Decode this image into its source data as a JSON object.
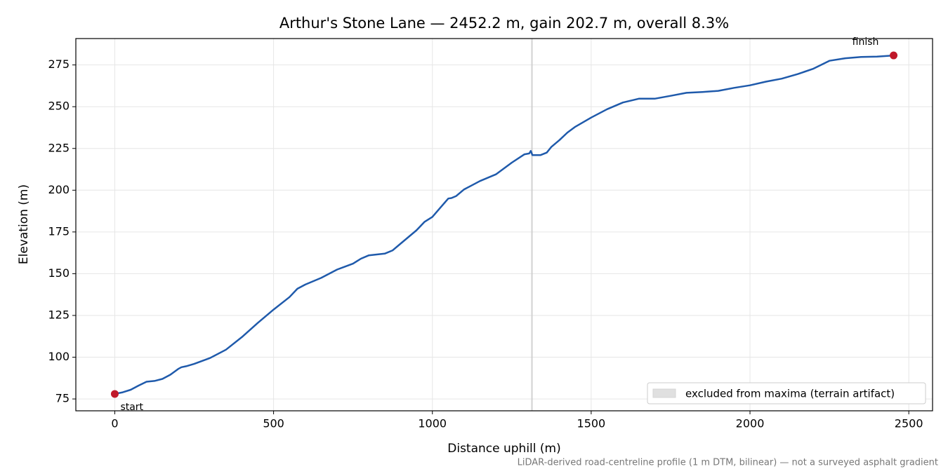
{
  "chart_data": {
    "type": "line",
    "title": "Arthur's Stone Lane — 2452.2 m, gain 202.7 m, overall 8.3%",
    "xlabel": "Distance uphill (m)",
    "ylabel": "Elevation (m)",
    "note": "LiDAR-derived road-centreline profile (1 m DTM, bilinear) — not a surveyed asphalt gradient",
    "color": "#1f5aab",
    "x": [
      0,
      25,
      50,
      75,
      100,
      125,
      150,
      175,
      200,
      210,
      225,
      250,
      300,
      350,
      400,
      450,
      500,
      550,
      575,
      600,
      650,
      700,
      750,
      775,
      800,
      850,
      875,
      900,
      925,
      950,
      975,
      1000,
      1025,
      1050,
      1060,
      1075,
      1100,
      1125,
      1150,
      1200,
      1250,
      1290,
      1305,
      1310,
      1315,
      1340,
      1360,
      1375,
      1400,
      1425,
      1450,
      1500,
      1550,
      1600,
      1650,
      1700,
      1750,
      1800,
      1850,
      1900,
      1950,
      2000,
      2050,
      2100,
      2150,
      2200,
      2250,
      2300,
      2350,
      2400,
      2452.2
    ],
    "values": [
      78,
      79,
      80.5,
      83,
      85.3,
      85.8,
      87,
      89.5,
      93,
      94,
      94.6,
      96,
      99.5,
      104.5,
      112,
      120.5,
      128.5,
      136,
      141,
      143.5,
      147.5,
      152.5,
      156,
      159,
      161,
      162,
      164,
      168,
      172,
      176,
      181,
      184,
      189.5,
      195,
      195.3,
      196.5,
      200.5,
      203,
      205.5,
      209.5,
      216.5,
      221.5,
      222,
      223.5,
      221,
      221,
      222.5,
      226,
      230,
      234.5,
      238,
      243.5,
      248.5,
      252.5,
      254.8,
      254.8,
      256.5,
      258.3,
      258.8,
      259.5,
      261.3,
      262.8,
      265,
      266.8,
      269.5,
      272.8,
      277.5,
      279,
      279.8,
      280,
      280.7
    ],
    "marker_color": "#c0182a",
    "start_label": "start",
    "finish_label": "finish",
    "excluded": {
      "label": "excluded from maxima (terrain artifact)",
      "range": [
        1311,
        1316
      ],
      "color": "#cccccc"
    },
    "legend": "lower right",
    "xlim": [
      -122.6,
      2574.8
    ],
    "ylim": [
      67.9,
      290.8
    ],
    "xticks": [
      0,
      500,
      1000,
      1500,
      2000,
      2500
    ],
    "yticks": [
      75,
      100,
      125,
      150,
      175,
      200,
      225,
      250,
      275
    ],
    "grid": true
  }
}
